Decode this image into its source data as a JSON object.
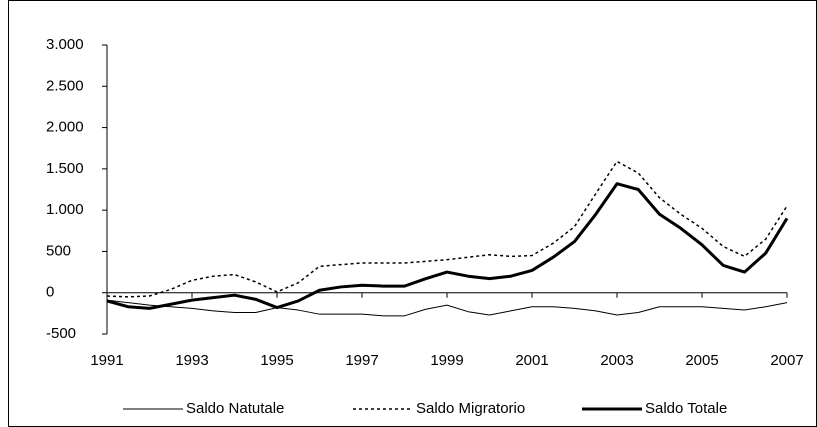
{
  "chart_data": {
    "type": "line",
    "x": [
      1991,
      1991.5,
      1992,
      1992.5,
      1993,
      1993.5,
      1994,
      1994.5,
      1995,
      1995.5,
      1996,
      1996.5,
      1997,
      1997.5,
      1998,
      1998.5,
      1999,
      1999.5,
      2000,
      2000.5,
      2001,
      2001.5,
      2002,
      2002.5,
      2003,
      2003.5,
      2004,
      2004.5,
      2005,
      2005.5,
      2006,
      2006.5,
      2007
    ],
    "series": [
      {
        "name": "Saldo Natutale",
        "color": "#000000",
        "style": "thin",
        "values": [
          -90,
          -120,
          -150,
          -170,
          -190,
          -220,
          -240,
          -240,
          -180,
          -210,
          -260,
          -260,
          -260,
          -280,
          -280,
          -200,
          -150,
          -230,
          -270,
          -220,
          -170,
          -170,
          -190,
          -220,
          -270,
          -240,
          -170,
          -170,
          -170,
          -190,
          -210,
          -170,
          -120
        ]
      },
      {
        "name": "Saldo Migratorio",
        "color": "#000000",
        "style": "dotted",
        "values": [
          -40,
          -50,
          -40,
          40,
          150,
          200,
          220,
          130,
          10,
          120,
          320,
          340,
          360,
          360,
          360,
          380,
          400,
          430,
          460,
          440,
          450,
          600,
          800,
          1200,
          1590,
          1450,
          1150,
          950,
          780,
          560,
          440,
          650,
          1050
        ]
      },
      {
        "name": "Saldo Totale",
        "color": "#000000",
        "style": "thick",
        "values": [
          -100,
          -170,
          -190,
          -140,
          -90,
          -60,
          -30,
          -80,
          -180,
          -100,
          30,
          70,
          90,
          80,
          80,
          170,
          250,
          200,
          170,
          200,
          270,
          430,
          620,
          950,
          1320,
          1250,
          950,
          780,
          580,
          330,
          250,
          480,
          900
        ]
      }
    ],
    "xlim": [
      1991,
      2007
    ],
    "xticks": [
      1991,
      1993,
      1995,
      1997,
      1999,
      2001,
      2003,
      2005,
      2007
    ],
    "ylim": [
      -500,
      3000
    ],
    "yticks": [
      -500,
      0,
      500,
      {
        "value": 1000,
        "label": "1.000"
      },
      {
        "value": 1500,
        "label": "1.500"
      },
      {
        "value": 2000,
        "label": "2.000"
      },
      {
        "value": 2500,
        "label": "2.500"
      },
      {
        "value": 3000,
        "label": "3.000"
      }
    ],
    "grid": false,
    "legend": "bottom"
  }
}
